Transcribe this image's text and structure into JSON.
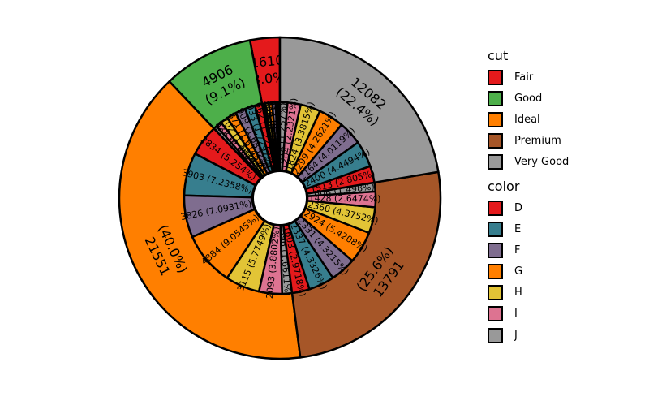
{
  "chart_data": {
    "type": "pie",
    "subtype": "nested-donut",
    "title": "",
    "start_angle_deg": 90,
    "direction": "counterclockwise",
    "outer_ring": {
      "variable": "cut",
      "categories": [
        "Fair",
        "Good",
        "Ideal",
        "Premium",
        "Very Good"
      ],
      "values": [
        1610,
        4906,
        21551,
        13791,
        12082
      ],
      "labels": [
        "1610\n(3.0%)",
        "4906\n(9.1%)",
        "21551\n(40.0%)",
        "13791\n(25.6%)",
        "12082\n(22.4%)"
      ],
      "colors": [
        "#e41a1c",
        "#4daf4a",
        "#ff7f00",
        "#a65628",
        "#999999"
      ]
    },
    "inner_ring": {
      "variable": "color",
      "color_order": [
        "D",
        "E",
        "F",
        "G",
        "H",
        "I",
        "J"
      ],
      "colors": {
        "D": "#e41a1c",
        "E": "#377e8e",
        "F": "#7f6d8f",
        "G": "#ff7f00",
        "H": "#e2c436",
        "I": "#dd7391",
        "J": "#999999"
      },
      "groups": [
        {
          "cut": "Fair",
          "values": [
            163,
            224,
            312,
            314,
            303,
            175,
            119
          ]
        },
        {
          "cut": "Good",
          "values": [
            662,
            933,
            909,
            871,
            702,
            522,
            307
          ]
        },
        {
          "cut": "Ideal",
          "values": [
            2834,
            3903,
            3826,
            4884,
            3115,
            2093,
            896
          ]
        },
        {
          "cut": "Premium",
          "values": [
            1603,
            2337,
            2331,
            2924,
            2360,
            1428,
            808
          ]
        },
        {
          "cut": "Very Good",
          "values": [
            1513,
            2400,
            2164,
            2299,
            1824,
            1204,
            678
          ]
        }
      ],
      "label_format": "count (pct%)",
      "total": 53940
    },
    "legend": {
      "position": "right",
      "sections": [
        {
          "title": "cut",
          "items": [
            "Fair",
            "Good",
            "Ideal",
            "Premium",
            "Very Good"
          ]
        },
        {
          "title": "color",
          "items": [
            "D",
            "E",
            "F",
            "G",
            "H",
            "I",
            "J"
          ]
        }
      ]
    }
  },
  "legend": {
    "cut": {
      "title": "cut",
      "items": [
        {
          "label": "Fair",
          "color": "#e41a1c"
        },
        {
          "label": "Good",
          "color": "#4daf4a"
        },
        {
          "label": "Ideal",
          "color": "#ff7f00"
        },
        {
          "label": "Premium",
          "color": "#a65628"
        },
        {
          "label": "Very Good",
          "color": "#999999"
        }
      ]
    },
    "color": {
      "title": "color",
      "items": [
        {
          "label": "D",
          "color": "#e41a1c"
        },
        {
          "label": "E",
          "color": "#377e8e"
        },
        {
          "label": "F",
          "color": "#7f6d8f"
        },
        {
          "label": "G",
          "color": "#ff7f00"
        },
        {
          "label": "H",
          "color": "#e2c436"
        },
        {
          "label": "I",
          "color": "#dd7391"
        },
        {
          "label": "J",
          "color": "#999999"
        }
      ]
    }
  }
}
